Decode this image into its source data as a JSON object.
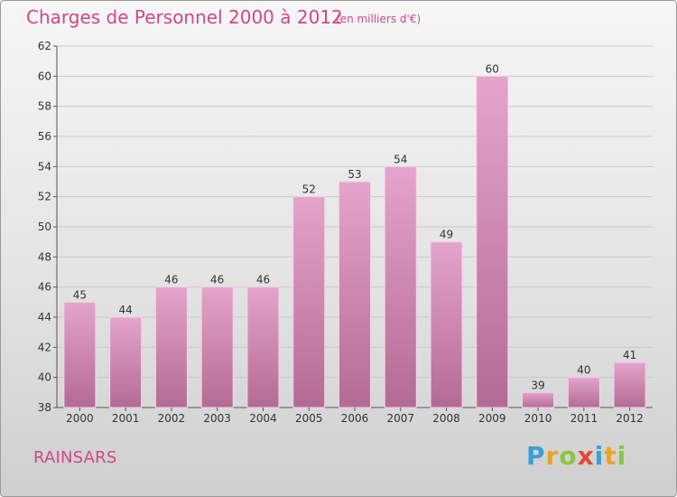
{
  "header": {
    "title": "Charges de Personnel 2000 à 2012",
    "subtitle": "(en milliers d'€)"
  },
  "footer": {
    "commune": "RAINSARS",
    "logo_text": "Proxiti"
  },
  "colors": {
    "accent": "#d0478b",
    "bar_top": "#e4a4cc",
    "bar_bottom": "#b36b95",
    "grid": "#c8c8c8"
  },
  "chart_data": {
    "type": "bar",
    "categories": [
      "2000",
      "2001",
      "2002",
      "2003",
      "2004",
      "2005",
      "2006",
      "2007",
      "2008",
      "2009",
      "2010",
      "2011",
      "2012"
    ],
    "values": [
      45,
      44,
      46,
      46,
      46,
      52,
      53,
      54,
      49,
      60,
      39,
      40,
      41
    ],
    "ylim": [
      38,
      62
    ],
    "yticks": [
      38,
      40,
      42,
      44,
      46,
      48,
      50,
      52,
      54,
      56,
      58,
      60,
      62
    ],
    "grid": true,
    "data_labels": true
  }
}
